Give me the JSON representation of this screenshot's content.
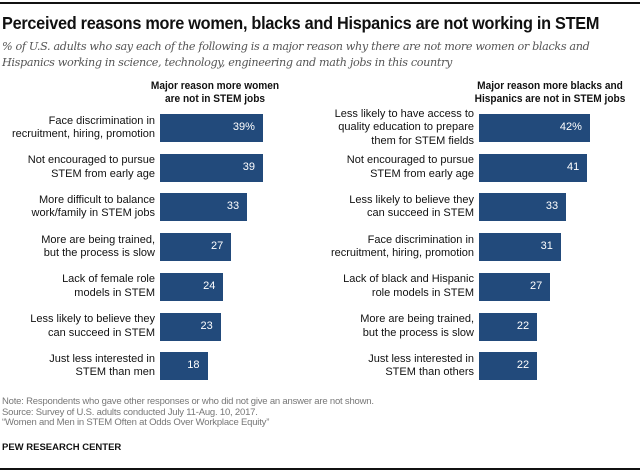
{
  "title": "Perceived reasons more women, blacks and Hispanics are not working in STEM",
  "subtitle": "% of U.S. adults who say each of the following is a major reason why there are not more women or blacks and Hispanics working in science, technology, engineering and math jobs in this country",
  "colors": {
    "bar": "#224a7b",
    "bar_label": "#ffffff"
  },
  "chart_data": [
    {
      "type": "bar",
      "orientation": "horizontal",
      "title": "Major reason more women are not in STEM jobs",
      "categories": [
        "Face discrimination in recruitment, hiring, promotion",
        "Not encouraged to pursue STEM from early age",
        "More difficult to balance work/family in STEM jobs",
        "More are being trained, but the process is slow",
        "Lack of female role models in STEM",
        "Less likely to believe they can succeed in STEM",
        "Just less interested in STEM than men"
      ],
      "category_lines": [
        [
          "Face discrimination in",
          "recruitment, hiring, promotion"
        ],
        [
          "Not encouraged to pursue",
          "STEM from early age"
        ],
        [
          "More difficult to balance",
          "work/family in STEM jobs"
        ],
        [
          "More are being trained,",
          "but the process is slow"
        ],
        [
          "Lack of female role",
          "models in STEM"
        ],
        [
          "Less likely to believe they",
          "can succeed in STEM"
        ],
        [
          "Just less interested in",
          "STEM than men"
        ]
      ],
      "values": [
        39,
        39,
        33,
        27,
        24,
        23,
        18
      ],
      "value_labels": [
        "39%",
        "39",
        "33",
        "27",
        "24",
        "23",
        "18"
      ],
      "unit": "%"
    },
    {
      "type": "bar",
      "orientation": "horizontal",
      "title": "Major reason more blacks and Hispanics are not in STEM jobs",
      "categories": [
        "Less likely to have access to quality education to prepare them for STEM fields",
        "Not encouraged to pursue STEM from early age",
        "Less likely to believe they can succeed in STEM",
        "Face discrimination in recruitment, hiring, promotion",
        "Lack of black and Hispanic role models in STEM",
        "More are being trained, but the process is slow",
        "Just less interested in STEM than others"
      ],
      "category_lines": [
        [
          "Less likely to have access to",
          "quality education to prepare",
          "them for STEM fields"
        ],
        [
          "Not encouraged to pursue",
          "STEM from early age"
        ],
        [
          "Less likely to believe they",
          "can succeed in STEM"
        ],
        [
          "Face discrimination in",
          "recruitment, hiring, promotion"
        ],
        [
          "Lack of black and Hispanic",
          "role models in STEM"
        ],
        [
          "More are being trained,",
          "but the process is slow"
        ],
        [
          "Just less interested in",
          "STEM than others"
        ]
      ],
      "values": [
        42,
        41,
        33,
        31,
        27,
        22,
        22
      ],
      "value_labels": [
        "42%",
        "41",
        "33",
        "31",
        "27",
        "22",
        "22"
      ],
      "unit": "%"
    }
  ],
  "panel_titles": [
    [
      "Major reason more women",
      "are not in STEM jobs"
    ],
    [
      "Major reason more blacks and",
      "Hispanics are not in STEM jobs"
    ]
  ],
  "notes": {
    "note": "Note: Respondents who gave other responses or who did not give an answer are not shown.",
    "source": "Source: Survey of U.S. adults conducted July 11-Aug. 10, 2017.",
    "report": "“Women and Men in STEM Often at Odds Over Workplace Equity”"
  },
  "brand": "PEW RESEARCH CENTER"
}
